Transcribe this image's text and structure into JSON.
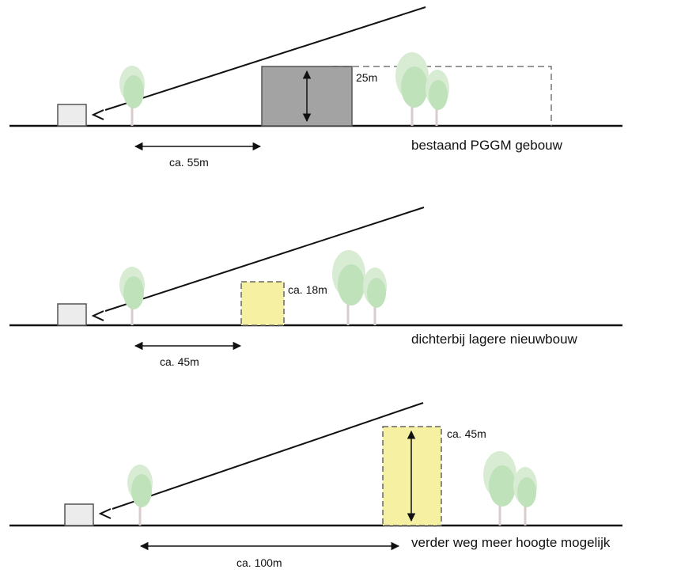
{
  "colors": {
    "ground": "#111111",
    "existing_building": "#a3a3a3",
    "new_building": "#f6f0a2",
    "tree_light": "#d7ecd3",
    "tree_mid": "#bfe2bb",
    "trunk": "#d9cccc",
    "small_house": "#ececec",
    "dashed_outline": "#777777"
  },
  "scenarios": [
    {
      "id": "existing",
      "height_label": "25m",
      "distance_label": "ca. 55m",
      "caption": "bestaand PGGM gebouw"
    },
    {
      "id": "closer-lower",
      "height_label": "ca. 18m",
      "distance_label": "ca. 45m",
      "caption": "dichterbij lagere nieuwbouw"
    },
    {
      "id": "farther-taller",
      "height_label": "ca. 45m",
      "distance_label": "ca. 100m",
      "caption": "verder weg meer hoogte mogelijk"
    }
  ]
}
